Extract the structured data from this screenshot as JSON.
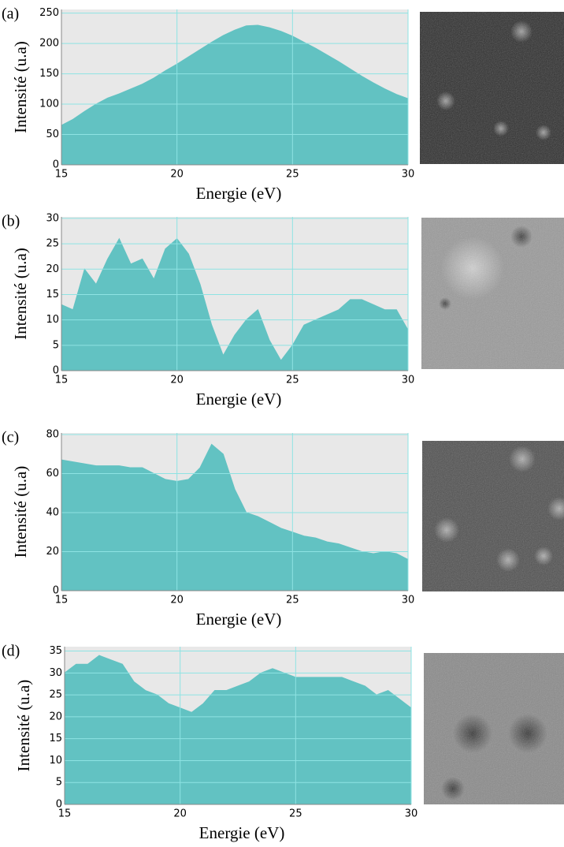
{
  "chart_data": [
    {
      "type": "area",
      "panel": "(a)",
      "x_label": "Energie (eV)",
      "y_label": "Intensité (u.a)",
      "color": "#62c2c2",
      "grid": true,
      "x": [
        15,
        15.5,
        16,
        16.5,
        17,
        17.5,
        18,
        18.5,
        19,
        19.5,
        20,
        20.5,
        21,
        21.5,
        22,
        22.5,
        23,
        23.5,
        24,
        24.5,
        25,
        25.5,
        26,
        26.5,
        27,
        27.5,
        28,
        28.5,
        29,
        29.5,
        30
      ],
      "values": [
        65,
        75,
        88,
        100,
        110,
        117,
        125,
        133,
        143,
        155,
        166,
        178,
        190,
        202,
        213,
        222,
        229,
        230,
        226,
        220,
        212,
        202,
        192,
        181,
        170,
        158,
        146,
        135,
        125,
        116,
        109
      ],
      "xlim": [
        15,
        30
      ],
      "xticks": [
        15,
        20,
        25,
        30
      ],
      "ylim": [
        0,
        256
      ],
      "yticks": [
        0,
        50,
        100,
        150,
        200,
        250
      ]
    },
    {
      "type": "area",
      "panel": "(b)",
      "x_label": "Energie (eV)",
      "y_label": "Intensité (u.a)",
      "color": "#62c2c2",
      "grid": true,
      "x": [
        15,
        15.5,
        16,
        16.5,
        17,
        17.5,
        18,
        18.5,
        19,
        19.5,
        20,
        20.5,
        21,
        21.5,
        22,
        22.5,
        23,
        23.5,
        24,
        24.5,
        25,
        25.5,
        26,
        26.5,
        27,
        27.5,
        28,
        28.5,
        29,
        29.5,
        30
      ],
      "values": [
        13,
        12,
        20,
        17,
        22,
        26,
        21,
        22,
        18,
        24,
        26,
        23,
        17,
        9,
        3,
        7,
        10,
        12,
        6,
        2,
        5,
        9,
        10,
        11,
        12,
        14,
        14,
        13,
        12,
        12,
        8
      ],
      "xlim": [
        15,
        30
      ],
      "xticks": [
        15,
        20,
        25,
        30
      ],
      "ylim": [
        0,
        30.3
      ],
      "yticks": [
        0,
        5,
        10,
        15,
        20,
        25,
        30
      ]
    },
    {
      "type": "area",
      "panel": "(c)",
      "x_label": "Energie (eV)",
      "y_label": "Intensité (u.a)",
      "color": "#62c2c2",
      "grid": true,
      "x": [
        15,
        15.5,
        16,
        16.5,
        17,
        17.5,
        18,
        18.5,
        19,
        19.5,
        20,
        20.5,
        21,
        21.5,
        22,
        22.5,
        23,
        23.5,
        24,
        24.5,
        25,
        25.5,
        26,
        26.5,
        27,
        27.5,
        28,
        28.5,
        29,
        29.5,
        30
      ],
      "values": [
        67,
        66,
        65,
        64,
        64,
        64,
        63,
        63,
        60,
        57,
        56,
        57,
        63,
        75,
        70,
        52,
        40,
        38,
        35,
        32,
        30,
        28,
        27,
        25,
        24,
        22,
        20,
        19,
        20,
        19,
        16
      ],
      "xlim": [
        15,
        30
      ],
      "xticks": [
        15,
        20,
        25,
        30
      ],
      "ylim": [
        0,
        80.8
      ],
      "yticks": [
        0,
        20,
        40,
        60,
        80
      ]
    },
    {
      "type": "area",
      "panel": "(d)",
      "x_label": "Energie (eV)",
      "y_label": "Intensité (u.a)",
      "color": "#62c2c2",
      "grid": true,
      "x": [
        15,
        15.5,
        16,
        16.5,
        17,
        17.5,
        18,
        18.5,
        19,
        19.5,
        20,
        20.5,
        21,
        21.5,
        22,
        22.5,
        23,
        23.5,
        24,
        24.5,
        25,
        25.5,
        26,
        26.5,
        27,
        27.5,
        28,
        28.5,
        29,
        29.5,
        30
      ],
      "values": [
        30,
        32,
        32,
        34,
        33,
        32,
        28,
        26,
        25,
        23,
        22,
        21,
        23,
        26,
        26,
        27,
        28,
        30,
        31,
        30,
        29,
        29,
        29,
        29,
        29,
        28,
        27,
        25,
        26,
        24,
        22
      ],
      "xlim": [
        15,
        30
      ],
      "xticks": [
        15,
        20,
        25,
        30
      ],
      "ylim": [
        0,
        36
      ],
      "yticks": [
        0,
        5,
        10,
        15,
        20,
        25,
        30,
        35
      ]
    }
  ]
}
